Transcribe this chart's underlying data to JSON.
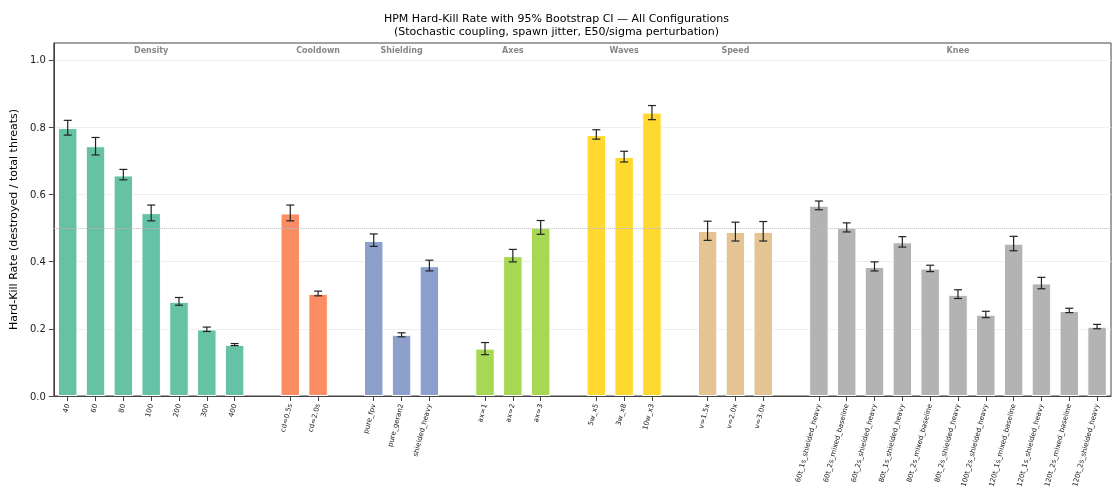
{
  "chart_data": {
    "type": "bar",
    "title": "HPM Hard-Kill Rate with 95% Bootstrap CI — All Configurations",
    "subtitle": "(Stochastic coupling, spawn jitter, E50/sigma perturbation)",
    "ylabel": "Hard-Kill Rate (destroyed / total threats)",
    "categories": [
      "40",
      "60",
      "80",
      "100",
      "200",
      "300",
      "400",
      null,
      "cd=0.5s",
      "cd=2.0s",
      null,
      "pure_fpv",
      "pure_geran2",
      "shielded_heavy",
      null,
      "ax=1",
      "ax=2",
      "ax=3",
      null,
      "5w_x5",
      "3w_x8",
      "10w_x3",
      null,
      "v=1.5x",
      "v=2.0x",
      "v=3.0x",
      null,
      "60t_1s_shielded_heavy",
      "60t_2s_mixed_baseline",
      "60t_2s_shielded_heavy",
      "80t_1s_shielded_heavy",
      "80t_2s_mixed_baseline",
      "80t_2s_shielded_heavy",
      "100t_2s_shielded_heavy",
      "120t_1s_mixed_baseline",
      "120t_1s_shielded_heavy",
      "120t_2s_mixed_baseline",
      "120t_2s_shielded_heavy"
    ],
    "values": [
      0.797,
      0.743,
      0.656,
      0.544,
      0.28,
      0.198,
      0.152,
      null,
      0.543,
      0.304,
      null,
      0.461,
      0.182,
      0.386,
      null,
      0.141,
      0.416,
      0.5,
      null,
      0.776,
      0.711,
      0.843,
      null,
      0.491,
      0.488,
      0.488,
      null,
      0.566,
      0.5,
      0.384,
      0.457,
      0.379,
      0.301,
      0.242,
      0.453,
      0.335,
      0.253,
      0.206
    ],
    "errors": [
      [
        0.776,
        0.82
      ],
      [
        0.717,
        0.769
      ],
      [
        0.643,
        0.674
      ],
      [
        0.521,
        0.568
      ],
      [
        0.27,
        0.293
      ],
      [
        0.192,
        0.205
      ],
      [
        0.15,
        0.156
      ],
      null,
      [
        0.521,
        0.568
      ],
      [
        0.298,
        0.312
      ],
      null,
      [
        0.445,
        0.482
      ],
      [
        0.176,
        0.188
      ],
      [
        0.372,
        0.404
      ],
      null,
      [
        0.123,
        0.159
      ],
      [
        0.399,
        0.436
      ],
      [
        0.481,
        0.522
      ],
      null,
      [
        0.764,
        0.792
      ],
      [
        0.696,
        0.728
      ],
      [
        0.822,
        0.864
      ],
      null,
      [
        0.463,
        0.52
      ],
      [
        0.461,
        0.517
      ],
      [
        0.461,
        0.519
      ],
      null,
      [
        0.554,
        0.58
      ],
      [
        0.488,
        0.515
      ],
      [
        0.372,
        0.399
      ],
      [
        0.443,
        0.474
      ],
      [
        0.37,
        0.389
      ],
      [
        0.29,
        0.316
      ],
      [
        0.233,
        0.252
      ],
      [
        0.432,
        0.475
      ],
      [
        0.319,
        0.353
      ],
      [
        0.248,
        0.261
      ],
      [
        0.2,
        0.213
      ]
    ],
    "colors": [
      "#66c2a5",
      "#66c2a5",
      "#66c2a5",
      "#66c2a5",
      "#66c2a5",
      "#66c2a5",
      "#66c2a5",
      null,
      "#fc8d62",
      "#fc8d62",
      null,
      "#8da0cb",
      "#8da0cb",
      "#8da0cb",
      null,
      "#a6d854",
      "#a6d854",
      "#a6d854",
      null,
      "#ffd92f",
      "#ffd92f",
      "#ffd92f",
      null,
      "#e5c494",
      "#e5c494",
      "#e5c494",
      null,
      "#b3b3b3",
      "#b3b3b3",
      "#b3b3b3",
      "#b3b3b3",
      "#b3b3b3",
      "#b3b3b3",
      "#b3b3b3",
      "#b3b3b3",
      "#b3b3b3",
      "#b3b3b3",
      "#b3b3b3"
    ],
    "annotations": [
      "Density",
      "Cooldown",
      "Shielding",
      "Axes",
      "Waves",
      "Speed",
      "Knee"
    ],
    "ylim": [
      0,
      1.05
    ],
    "yticks": [
      {
        "value": 0,
        "label": "0.0"
      },
      {
        "value": 0.2,
        "label": "0.2"
      },
      {
        "value": 0.4,
        "label": "0.4"
      },
      {
        "value": 0.6,
        "label": "0.6"
      },
      {
        "value": 0.8,
        "label": "0.8"
      },
      {
        "value": 1.0,
        "label": "1.0"
      }
    ],
    "ref_lines": [
      {
        "axis": "y",
        "value": 0.5,
        "color": "#bbbbbb",
        "line_style": "dotted"
      }
    ],
    "grid": "y"
  }
}
